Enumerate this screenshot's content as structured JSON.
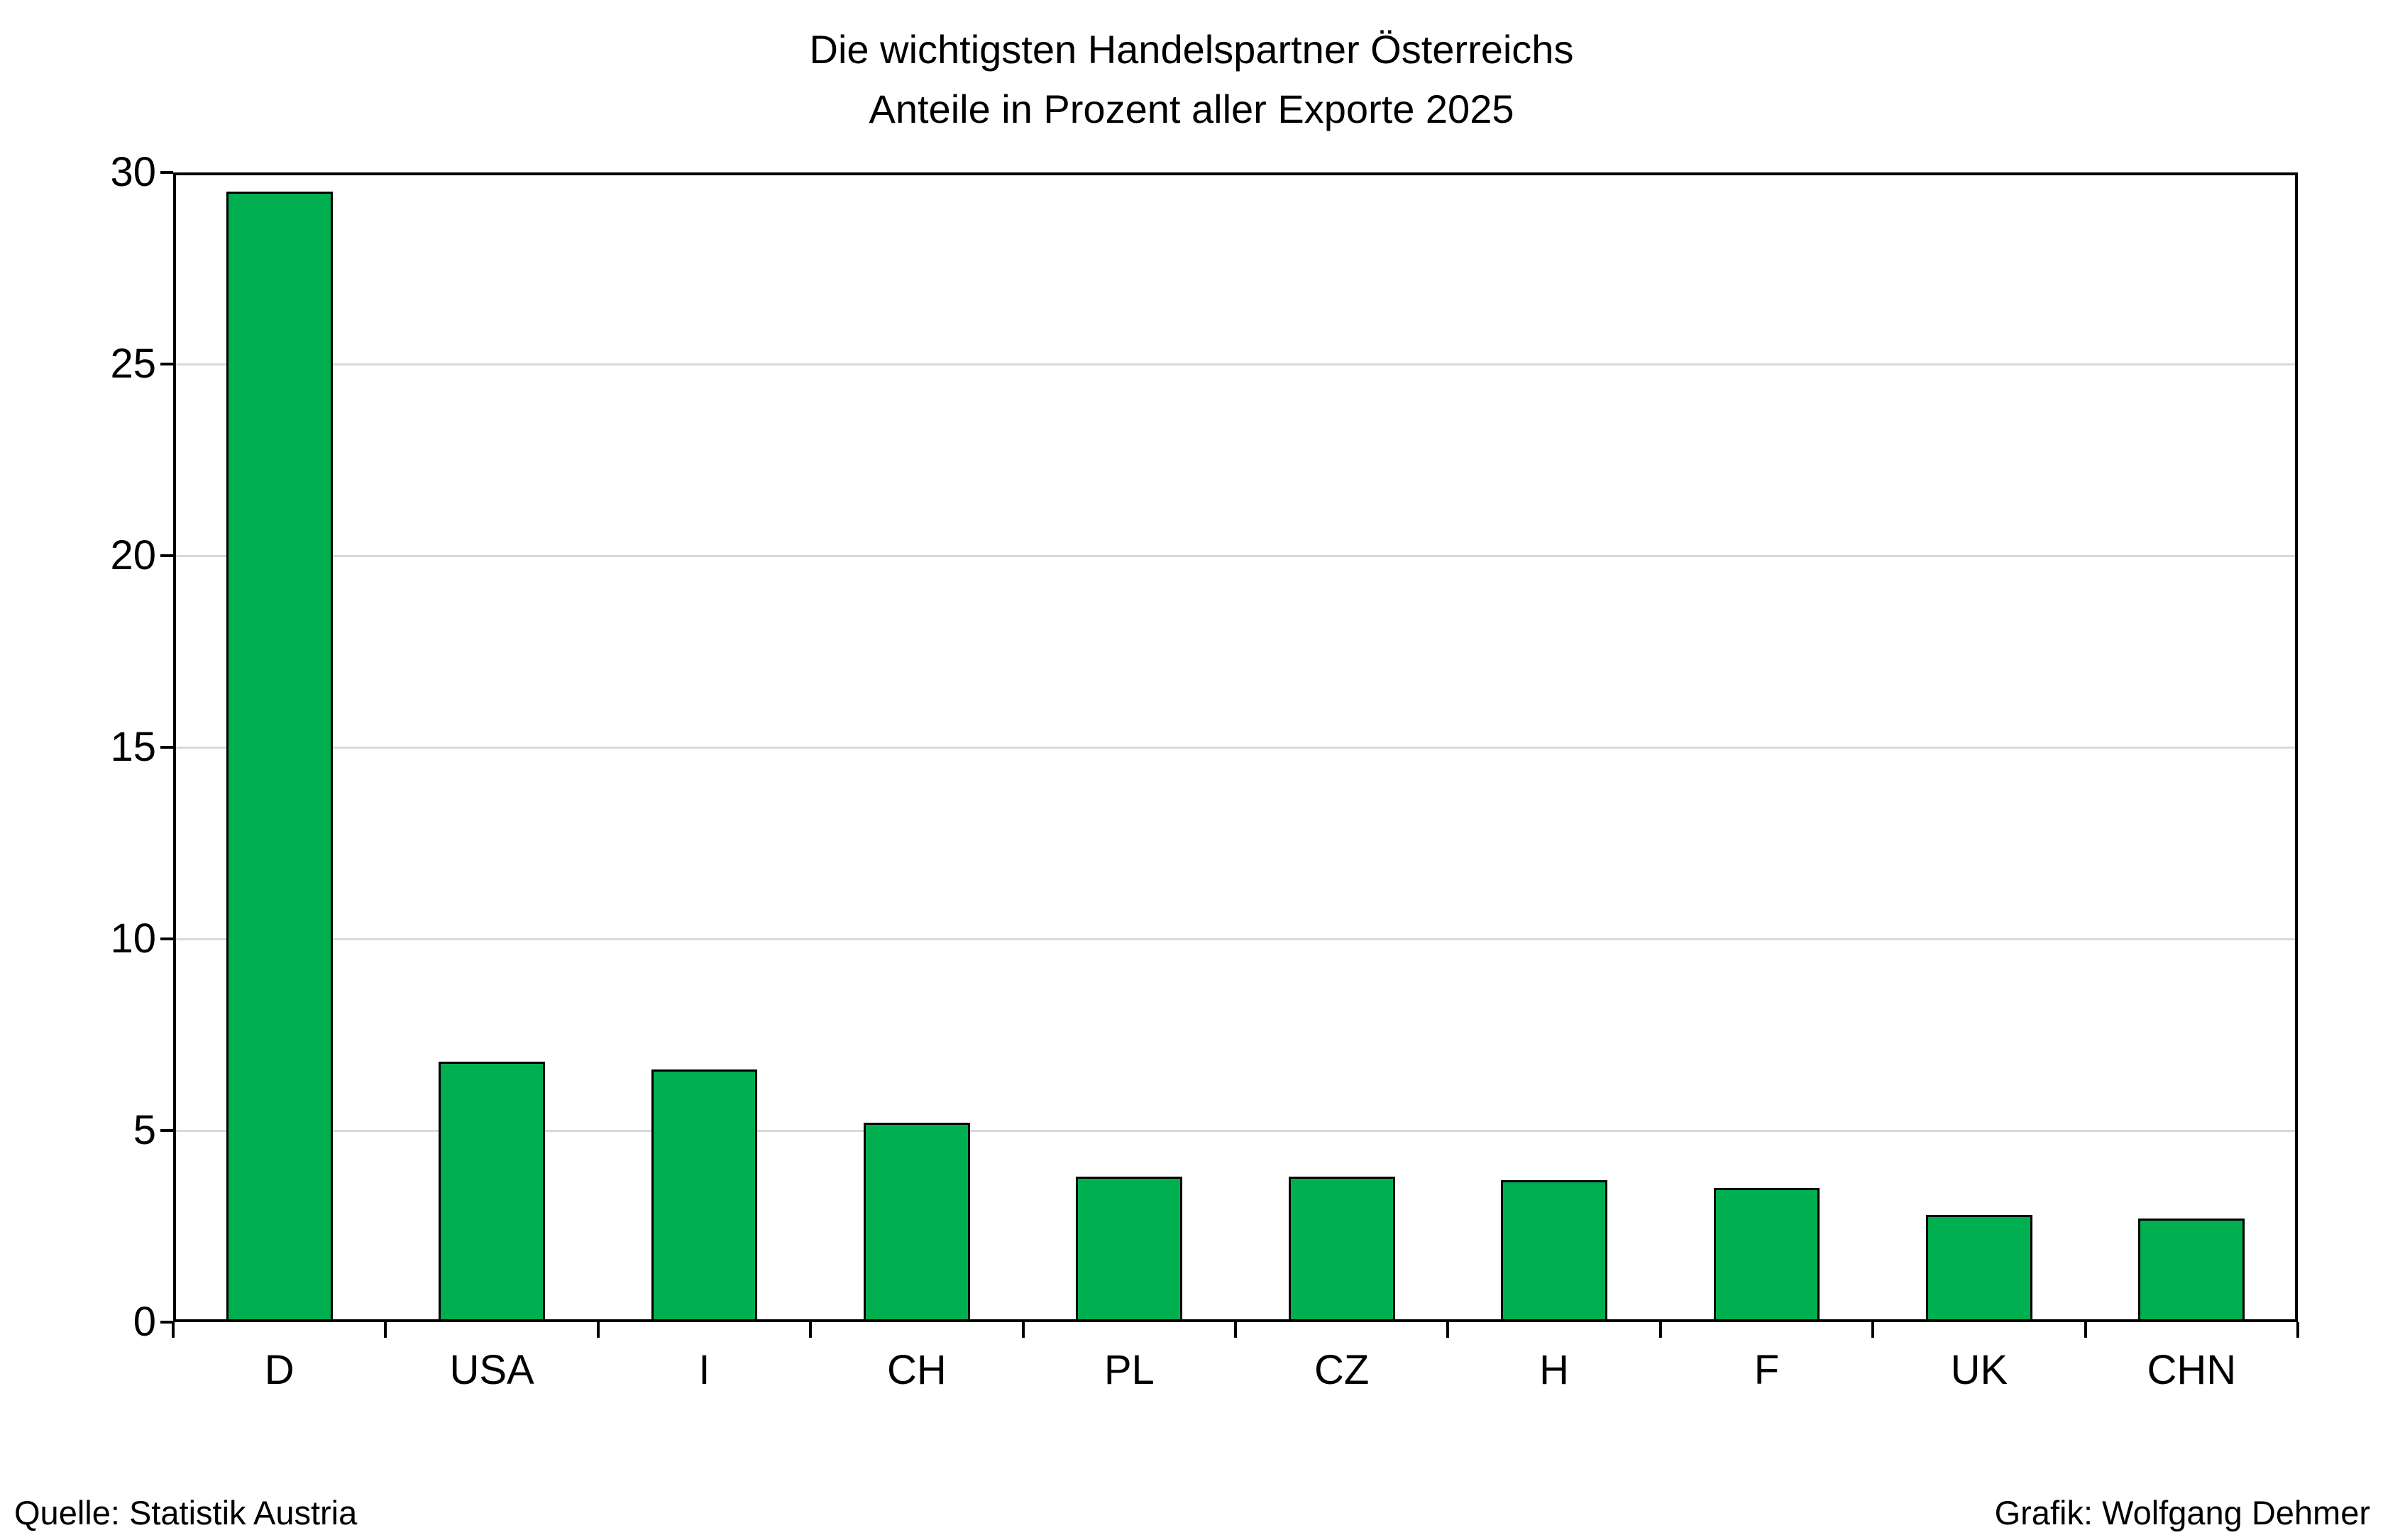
{
  "title": {
    "line1": "Die wichtigsten Handelspartner Österreichs",
    "line2": "Anteile in Prozent aller Exporte 2025"
  },
  "footer": {
    "source": "Quelle: Statistik Austria",
    "credit": "Grafik: Wolfgang Dehmer"
  },
  "chart_data": {
    "type": "bar",
    "title": "Die wichtigsten Handelspartner Österreichs",
    "subtitle": "Anteile in Prozent aller Exporte 2025",
    "categories": [
      "D",
      "USA",
      "I",
      "CH",
      "PL",
      "CZ",
      "H",
      "F",
      "UK",
      "CHN"
    ],
    "values": [
      29.5,
      6.8,
      6.6,
      5.2,
      3.8,
      3.8,
      3.7,
      3.5,
      2.8,
      2.7
    ],
    "xlabel": "",
    "ylabel": "",
    "ylim": [
      0,
      30
    ],
    "yticks": [
      0,
      5,
      10,
      15,
      20,
      25,
      30
    ],
    "ytick_labels": [
      "0",
      "5",
      "10",
      "15",
      "20",
      "25",
      "30"
    ],
    "grid": true,
    "legend": "none",
    "bar_color": "#00B050",
    "bar_border_color": "#000000",
    "gridline_color": "#D9D9D9",
    "axis_color": "#000000"
  }
}
